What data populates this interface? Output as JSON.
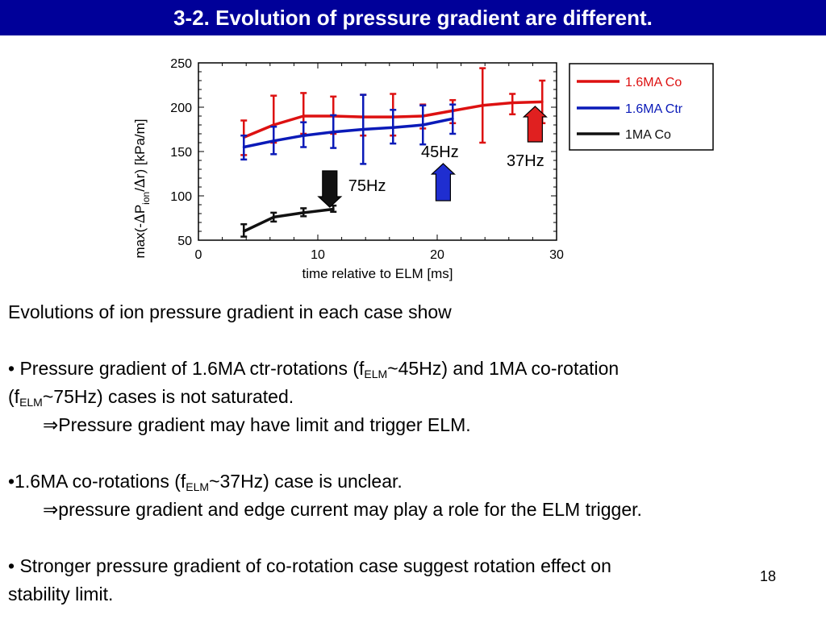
{
  "slide": {
    "title": "3-2. Evolution of pressure gradient are different.",
    "page_number": "18",
    "intro": "Evolutions of ion pressure gradient in each case show",
    "p1_a": "• Pressure gradient of 1.6MA ctr-rotations (f",
    "p1_sub1": "ELM",
    "p1_b": "~45Hz) and 1MA co-rotation",
    "p1_c": "(f",
    "p1_sub2": "ELM",
    "p1_d": "~75Hz) cases is not saturated.",
    "p1_arrow": "⇒",
    "p1_e": "Pressure gradient may have limit and trigger ELM.",
    "p2_a": "•1.6MA co-rotations (f",
    "p2_sub": "ELM",
    "p2_b": "~37Hz) case is unclear.",
    "p2_arrow": "⇒",
    "p2_c": "pressure gradient and edge current may play a role for the ELM trigger.",
    "p3_a": "• Stronger pressure gradient of co-rotation case suggest rotation effect on",
    "p3_b": "stability limit."
  },
  "chart_data": {
    "type": "line",
    "xlabel": "time relative to ELM [ms]",
    "ylabel_parts": [
      "max(-",
      "∆",
      "P",
      "ion",
      "/",
      "∆",
      "r) [kPa/m]"
    ],
    "xlim": [
      0,
      30
    ],
    "ylim": [
      50,
      250
    ],
    "xticks": [
      0,
      10,
      20,
      30
    ],
    "yticks": [
      50,
      100,
      150,
      200,
      250
    ],
    "legend_position": "right",
    "series": [
      {
        "name": "1.6MA Co",
        "color": "#dd1111",
        "x": [
          3.8,
          6.3,
          8.8,
          11.3,
          13.8,
          16.3,
          18.8,
          21.3,
          23.8,
          26.3,
          28.8
        ],
        "y": [
          166,
          180,
          190,
          190,
          189,
          189,
          190,
          196,
          202,
          205,
          206
        ],
        "err_lo": [
          146,
          160,
          170,
          170,
          168,
          168,
          176,
          182,
          160,
          192,
          182
        ],
        "err_hi": [
          185,
          213,
          216,
          212,
          214,
          215,
          203,
          208,
          244,
          215,
          230
        ]
      },
      {
        "name": "1.6MA Ctr",
        "color": "#0a1ab8",
        "x": [
          3.8,
          6.3,
          8.8,
          11.3,
          13.8,
          16.3,
          18.8,
          21.3
        ],
        "y": [
          155,
          162,
          168,
          172,
          175,
          177,
          180,
          187
        ],
        "err_lo": [
          141,
          147,
          155,
          154,
          136,
          159,
          158,
          170
        ],
        "err_hi": [
          168,
          178,
          183,
          191,
          214,
          197,
          202,
          203
        ]
      },
      {
        "name": "1MA Co",
        "color": "#111111",
        "x": [
          3.8,
          6.3,
          8.8,
          11.3
        ],
        "y": [
          60,
          76,
          81,
          85
        ],
        "err_lo": [
          54,
          71,
          77,
          82
        ],
        "err_hi": [
          68,
          81,
          86,
          89
        ]
      }
    ],
    "annotations": [
      {
        "text": "75Hz",
        "x": 11.0,
        "arrow_color": "#111111"
      },
      {
        "text": "45Hz",
        "x": 20.5,
        "arrow_color": "#1f2ed0"
      },
      {
        "text": "37Hz",
        "x": 28.2,
        "arrow_color": "#e02020"
      }
    ]
  }
}
